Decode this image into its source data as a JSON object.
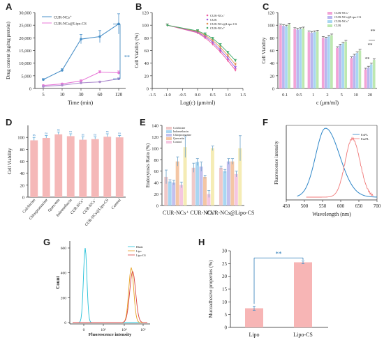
{
  "chart_data": [
    {
      "id": "A",
      "type": "line",
      "panel_label": "A",
      "xlabel": "Time (min)",
      "ylabel": "Drug content (ng/mg protein)",
      "categories": [
        "5",
        "10",
        "30",
        "60",
        "120"
      ],
      "ylim": [
        0,
        30000
      ],
      "yticks": [
        "0",
        "5,000",
        "10,000",
        "15,000",
        "20,000",
        "25,000",
        "30,000"
      ],
      "series": [
        {
          "name": "CUR-NCs⁺",
          "color": "#4a90c8",
          "values": [
            3500,
            7200,
            19500,
            20500,
            25500
          ],
          "errors": [
            400,
            600,
            1800,
            2400,
            4000
          ]
        },
        {
          "name": "CUR-NCs@Lipo-CS",
          "color": "#e87ad8",
          "values": [
            1200,
            1800,
            3000,
            6500,
            6200
          ],
          "errors": [
            200,
            300,
            400,
            500,
            700
          ]
        },
        {
          "name": "",
          "color": "#b08fd0",
          "values": [
            800,
            1300,
            2200,
            2600,
            3800
          ],
          "errors": [
            200,
            200,
            300,
            300,
            400
          ]
        }
      ],
      "annotation": "**"
    },
    {
      "id": "B",
      "type": "line",
      "panel_label": "B",
      "xlabel": "Log(c) (μm/ml)",
      "ylabel": "Cell Viability (%)",
      "x": [
        -1.0,
        0.0,
        0.25,
        0.5,
        0.75,
        1.0,
        1.25
      ],
      "xticks": [
        "-1.5",
        "-1.0",
        "-0.5",
        "0.0",
        "0.5",
        "1.0",
        "1.5"
      ],
      "xlim": [
        -1.5,
        1.5
      ],
      "ylim": [
        0,
        120
      ],
      "yticks": [
        "0",
        "20",
        "40",
        "60",
        "80",
        "100",
        "120"
      ],
      "series": [
        {
          "name": "CUR-NCs⁻",
          "color": "#ee5aa0",
          "values": [
            100,
            88,
            80,
            70,
            58,
            44,
            29
          ]
        },
        {
          "name": "CUR",
          "color": "#9b5ae0",
          "values": [
            100,
            89,
            82,
            73,
            61,
            48,
            33
          ]
        },
        {
          "name": "CUR-NCs@Lipo-CS",
          "color": "#e09050",
          "values": [
            100,
            90,
            84,
            76,
            65,
            52,
            38
          ]
        },
        {
          "name": "CUR-NCs⁺",
          "color": "#3faa6a",
          "values": [
            100,
            91,
            86,
            79,
            69,
            57,
            44
          ]
        }
      ]
    },
    {
      "id": "C",
      "type": "bar",
      "panel_label": "C",
      "xlabel": "c (μm/ml)",
      "ylabel": "Cell Viability",
      "categories": [
        "0.1",
        "0.5",
        "1",
        "2",
        "5",
        "10",
        "20"
      ],
      "ylim": [
        0,
        120
      ],
      "yticks": [
        "0",
        "20",
        "40",
        "60",
        "80",
        "100",
        "120"
      ],
      "series": [
        {
          "name": "CUR-NCs⁻",
          "color": "#f2a3d6",
          "values": [
            100,
            94,
            89,
            80,
            64,
            48,
            30
          ]
        },
        {
          "name": "CUR-NCs@Lipo-CS",
          "color": "#b9b6ef",
          "values": [
            99,
            93,
            88,
            79,
            68,
            52,
            33
          ]
        },
        {
          "name": "CUR-NCs⁺",
          "color": "#a9d6f2",
          "values": [
            98,
            94,
            89,
            82,
            71,
            56,
            38
          ]
        },
        {
          "name": "CUR",
          "color": "#bde8b0",
          "values": [
            101,
            95,
            90,
            84,
            74,
            60,
            45
          ]
        }
      ],
      "annotations": [
        "**",
        "**",
        "**"
      ]
    },
    {
      "id": "D",
      "type": "bar",
      "panel_label": "D",
      "ylabel": "Cell Viability",
      "categories": [
        "Colchicine",
        "Chlorpromazine",
        "Quercetin",
        "Indomethacin",
        "CUR-NCs⁺",
        "CUR-NCs⁻",
        "CUR-NCs@Lipo-CS",
        "Control"
      ],
      "values": [
        95,
        99,
        105,
        102,
        96,
        97,
        101,
        100
      ],
      "errors": [
        5,
        4,
        4,
        4,
        5,
        4,
        5,
        3
      ],
      "labels": [
        "ns",
        "ns",
        "ns",
        "ns",
        "ns",
        "ns",
        "ns",
        "ns"
      ],
      "ylim": [
        0,
        120
      ],
      "yticks": [
        "0",
        "20",
        "40",
        "60",
        "80",
        "100"
      ],
      "color": "#f5b8b8"
    },
    {
      "id": "E",
      "type": "bar",
      "panel_label": "E",
      "ylabel": "Endocytosis Ratio (%)",
      "categories": [
        "CUR-NCs⁺",
        "CUR-NCs⁻",
        "CUR-NCs@Lipo-CS"
      ],
      "ylim": [
        0,
        140
      ],
      "yticks": [
        "0",
        "20",
        "40",
        "60",
        "80",
        "100",
        "120",
        "140"
      ],
      "series": [
        {
          "name": "Colchicine",
          "color": "#f0c8c8",
          "values": [
            50,
            66,
            66
          ],
          "errors": [
            12,
            8,
            3
          ]
        },
        {
          "name": "Indomethacin",
          "color": "#a9d6f2",
          "values": [
            42,
            76,
            60
          ],
          "errors": [
            3,
            6,
            3
          ]
        },
        {
          "name": "Chlorpromazine",
          "color": "#c3c0ee",
          "values": [
            40,
            68,
            77
          ],
          "errors": [
            4,
            8,
            5
          ]
        },
        {
          "name": "Quercetin",
          "color": "#f4c6a4",
          "values": [
            77,
            50,
            77
          ],
          "errors": [
            8,
            3,
            5
          ]
        },
        {
          "name": "Control",
          "color": "#f5c6e0",
          "values": [
            36,
            20,
            55
          ],
          "errors": [
            5,
            6,
            5
          ]
        },
        {
          "name": "",
          "color": "#f5ecb5",
          "values": [
            102,
            100,
            100
          ],
          "errors": [
            18,
            4,
            22
          ]
        }
      ]
    },
    {
      "id": "F",
      "type": "line",
      "panel_label": "F",
      "xlabel": "Wavelength (nm)",
      "ylabel": "Fluorescence intensity",
      "xlim": [
        450,
        700
      ],
      "xticks": [
        "450",
        "500",
        "550",
        "600",
        "650",
        "700"
      ],
      "series": [
        {
          "name": "ExPL",
          "color": "#2e86c8",
          "peak": 558
        },
        {
          "name": "EmPL",
          "color": "#f07878",
          "peak": 632
        }
      ]
    },
    {
      "id": "G",
      "type": "line",
      "panel_label": "G",
      "xlabel": "Fluorescence intensity",
      "ylabel": "Count",
      "yticks": [
        "0",
        "200",
        "400",
        "600"
      ],
      "ylim": [
        0,
        600
      ],
      "xticks": [
        "0",
        "10³",
        "10⁴",
        "10⁵"
      ],
      "series": [
        {
          "name": "Blank",
          "color": "#22c0d8",
          "peak_count": 600
        },
        {
          "name": "Lipo",
          "color": "#e8a020",
          "peak_count": 440
        },
        {
          "name": "Lipo-CS",
          "color": "#d84040",
          "peak_count": 410
        }
      ]
    },
    {
      "id": "H",
      "type": "bar",
      "panel_label": "H",
      "ylabel": "Mucoadhesive properties (%)",
      "categories": [
        "Lipo",
        "Lipo-CS"
      ],
      "values": [
        7.5,
        25.5
      ],
      "errors": [
        0.8,
        0.5
      ],
      "ylim": [
        0,
        30
      ],
      "yticks": [
        "0",
        "5",
        "10",
        "15",
        "20",
        "25",
        "30"
      ],
      "color": "#f7b5b5",
      "annotation": "**"
    }
  ]
}
